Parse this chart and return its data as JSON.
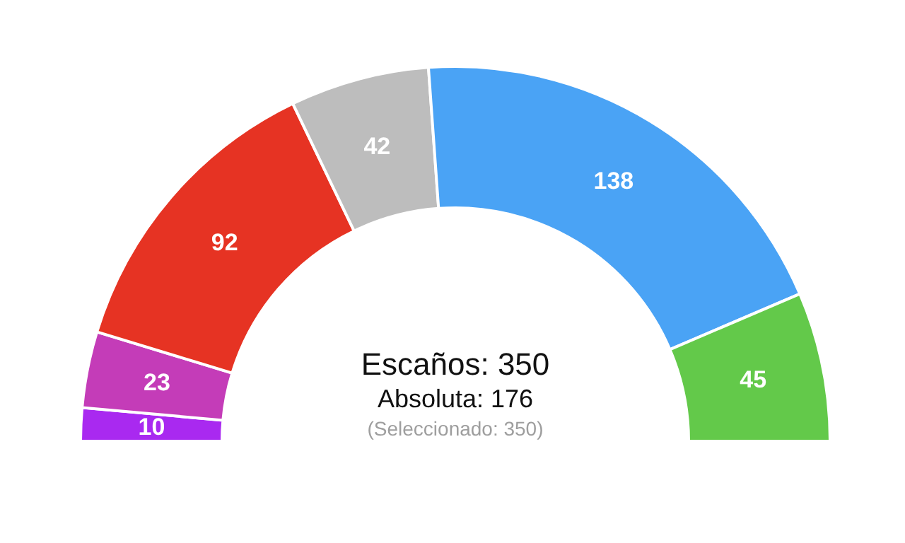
{
  "chart_data": {
    "type": "donut",
    "categories": [
      null,
      null,
      null,
      null,
      null,
      null
    ],
    "values": [
      10,
      23,
      92,
      42,
      138,
      45
    ],
    "colors": [
      "#a929f0",
      "#c43cb8",
      "#e63323",
      "#bdbdbd",
      "#4aa3f5",
      "#63c94a"
    ],
    "data_labels": true,
    "annotations": [
      "Escaños: 350",
      "Absoluta: 176",
      "(Seleccionado: 350)"
    ]
  }
}
